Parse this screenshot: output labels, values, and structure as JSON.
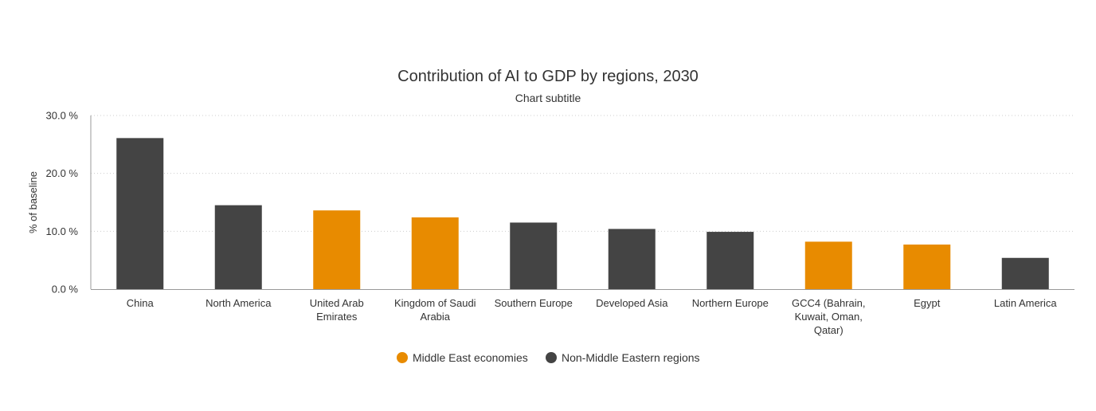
{
  "chart_data": {
    "type": "bar",
    "title": "Contribution of AI to GDP by regions, 2030",
    "subtitle": "Chart subtitle",
    "xlabel": "",
    "ylabel": "% of baseline",
    "ylim": [
      0,
      30
    ],
    "yticks": [
      0,
      10,
      20,
      30
    ],
    "ytick_labels": [
      "0.0 %",
      "10.0 %",
      "20.0 %",
      "30.0 %"
    ],
    "grid": true,
    "legend_position": "bottom-center",
    "categories": [
      "China",
      "North America",
      "United Arab Emirates",
      "Kingdom of Saudi Arabia",
      "Southern Europe",
      "Developed Asia",
      "Northern Europe",
      "GCC4 (Bahrain, Kuwait, Oman, Qatar)",
      "Egypt",
      "Latin America"
    ],
    "category_label_lines": [
      [
        "China"
      ],
      [
        "North America"
      ],
      [
        "United Arab",
        "Emirates"
      ],
      [
        "Kingdom of Saudi",
        "Arabia"
      ],
      [
        "Southern Europe"
      ],
      [
        "Developed Asia"
      ],
      [
        "Northern Europe"
      ],
      [
        "GCC4 (Bahrain,",
        "Kuwait, Oman,",
        "Qatar)"
      ],
      [
        "Egypt"
      ],
      [
        "Latin America"
      ]
    ],
    "values": [
      26.1,
      14.5,
      13.6,
      12.4,
      11.5,
      10.4,
      9.9,
      8.2,
      7.7,
      5.4
    ],
    "groups": [
      1,
      1,
      0,
      0,
      1,
      1,
      1,
      0,
      0,
      1
    ],
    "series": [
      {
        "name": "Middle East economies",
        "color": "#e88b00"
      },
      {
        "name": "Non-Middle Eastern regions",
        "color": "#444444"
      }
    ]
  }
}
